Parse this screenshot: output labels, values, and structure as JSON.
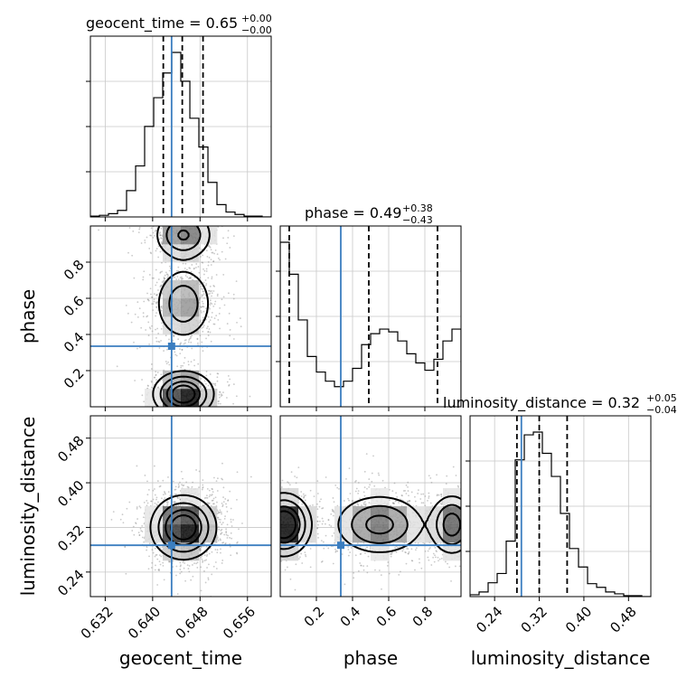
{
  "chart_data": {
    "type": "corner",
    "parameters": [
      "geocent_time",
      "phase",
      "luminosity_distance"
    ],
    "injection": {
      "geocent_time": 0.6432,
      "phase": 0.335,
      "luminosity_distance": 0.288
    },
    "injection_color": "#3b7ec0",
    "panel_titles": {
      "geocent_time": {
        "text": "geocent_time = 0.65",
        "sup": "+0.00",
        "sub": "−0.00"
      },
      "phase": {
        "text": "phase = 0.49",
        "sup": "+0.38",
        "sub": "−0.43"
      },
      "luminosity_distance": {
        "text": "luminosity_distance = 0.32",
        "sup": "+0.05",
        "sub": "−0.04"
      }
    },
    "axis_labels": {
      "geocent_time": "geocent_time",
      "phase": "phase",
      "luminosity_distance": "luminosity_distance"
    },
    "ranges": {
      "geocent_time": [
        0.6295,
        0.66
      ],
      "phase": [
        0.0,
        1.0
      ],
      "luminosity_distance": [
        0.196,
        0.52
      ]
    },
    "ticks": {
      "geocent_time": [
        "0.632",
        "0.640",
        "0.648",
        "0.656"
      ],
      "phase": [
        "0.2",
        "0.4",
        "0.6",
        "0.8"
      ],
      "luminosity_distance": [
        "0.24",
        "0.32",
        "0.40",
        "0.48"
      ]
    },
    "quantiles": {
      "geocent_time": [
        0.6418,
        0.645,
        0.6485
      ],
      "phase": [
        0.05,
        0.49,
        0.87
      ],
      "luminosity_distance": [
        0.28,
        0.32,
        0.37
      ]
    },
    "hist_1d": {
      "geocent_time": {
        "edges": [
          0.6295,
          0.63103,
          0.63255,
          0.63408,
          0.6356,
          0.63713,
          0.63865,
          0.64018,
          0.6417,
          0.64323,
          0.64475,
          0.64628,
          0.6478,
          0.64933,
          0.65085,
          0.65238,
          0.6539,
          0.65543,
          0.65695,
          0.65848,
          0.66
        ],
        "counts": [
          1,
          2,
          4,
          8,
          32,
          62,
          110,
          145,
          175,
          200,
          165,
          120,
          85,
          42,
          15,
          6,
          3,
          1,
          1,
          0
        ]
      },
      "phase": {
        "edges": [
          0.0,
          0.05,
          0.1,
          0.15,
          0.2,
          0.25,
          0.3,
          0.35,
          0.4,
          0.45,
          0.5,
          0.55,
          0.6,
          0.65,
          0.7,
          0.75,
          0.8,
          0.85,
          0.9,
          0.95,
          1.0
        ],
        "counts": [
          180,
          145,
          95,
          55,
          38,
          28,
          22,
          28,
          42,
          68,
          80,
          85,
          82,
          72,
          58,
          48,
          40,
          52,
          72,
          85
        ]
      },
      "luminosity_distance": {
        "edges": [
          0.196,
          0.2122,
          0.2284,
          0.2446,
          0.2608,
          0.277,
          0.2932,
          0.3094,
          0.3256,
          0.3418,
          0.358,
          0.3742,
          0.3904,
          0.4066,
          0.4228,
          0.439,
          0.4552,
          0.4714,
          0.4876,
          0.5038,
          0.52
        ],
        "counts": [
          2,
          5,
          15,
          25,
          60,
          148,
          175,
          178,
          155,
          130,
          90,
          52,
          32,
          14,
          10,
          5,
          3,
          1,
          1,
          0
        ]
      }
    },
    "grid": true,
    "legend": "none"
  }
}
